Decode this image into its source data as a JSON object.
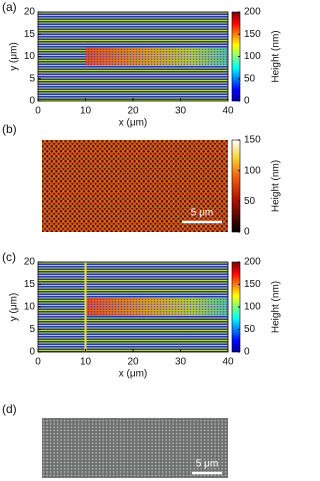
{
  "panels": [
    {
      "label": "(a)",
      "type": "map",
      "xlim": [
        0,
        40
      ],
      "ylim": [
        0,
        20
      ],
      "xticks": [
        0,
        10,
        20,
        30,
        40
      ],
      "yticks": [
        0,
        5,
        10,
        15,
        20
      ],
      "xlabel": "x (μm)",
      "ylabel": "y (μm)",
      "colorbar": {
        "lim": [
          0,
          200
        ],
        "ticks": [
          0,
          50,
          100,
          150,
          200
        ],
        "label": "Height (nm)",
        "colormap": "jet"
      }
    },
    {
      "label": "(b)",
      "type": "afm",
      "colorbar": {
        "lim": [
          0,
          150
        ],
        "ticks": [
          0,
          50,
          100,
          150
        ],
        "label": "Height (nm)",
        "colormap": "hot"
      },
      "scale_bar": "5 μm"
    },
    {
      "label": "(c)",
      "type": "map",
      "xlim": [
        0,
        40
      ],
      "ylim": [
        0,
        20
      ],
      "xticks": [
        0,
        10,
        20,
        30,
        40
      ],
      "yticks": [
        0,
        5,
        10,
        15,
        20
      ],
      "xlabel": "x (μm)",
      "ylabel": "y (μm)",
      "line_x": 10,
      "colorbar": {
        "lim": [
          0,
          200
        ],
        "ticks": [
          0,
          50,
          100,
          150,
          200
        ],
        "label": "Height (nm)",
        "colormap": "jet"
      }
    },
    {
      "label": "(d)",
      "type": "sem",
      "scale_bar": "5 μm"
    }
  ]
}
